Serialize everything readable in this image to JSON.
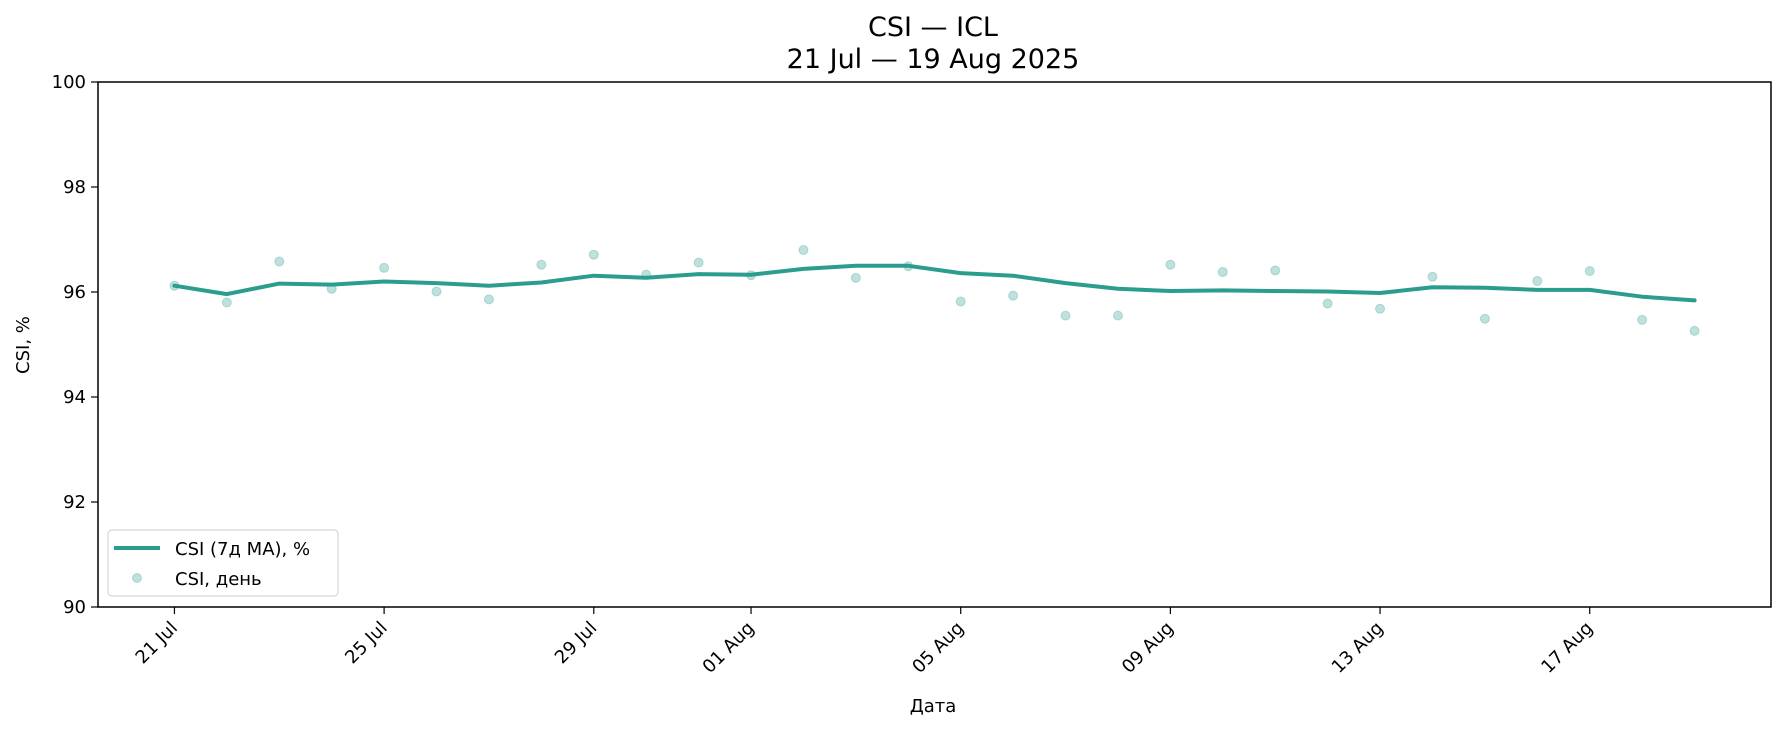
{
  "chart_data": {
    "type": "line",
    "title": "CSI — ICL",
    "subtitle": "21 Jul — 19 Aug 2025",
    "xlabel": "Дата",
    "ylabel": "CSI, %",
    "ylim": [
      90,
      100
    ],
    "yticks": [
      "90",
      "92",
      "94",
      "96",
      "98",
      "100"
    ],
    "xticks": [
      {
        "date": "2025-07-21",
        "label": "21 Jul"
      },
      {
        "date": "2025-07-25",
        "label": "25 Jul"
      },
      {
        "date": "2025-07-29",
        "label": "29 Jul"
      },
      {
        "date": "2025-08-01",
        "label": "01 Aug"
      },
      {
        "date": "2025-08-05",
        "label": "05 Aug"
      },
      {
        "date": "2025-08-09",
        "label": "09 Aug"
      },
      {
        "date": "2025-08-13",
        "label": "13 Aug"
      },
      {
        "date": "2025-08-17",
        "label": "17 Aug"
      }
    ],
    "xlim": [
      "2025-07-19T13:00",
      "2025-08-20T11:00"
    ],
    "grid": false,
    "legend_position": "lower-left",
    "x": [
      "2025-07-21",
      "2025-07-22",
      "2025-07-23",
      "2025-07-24",
      "2025-07-25",
      "2025-07-26",
      "2025-07-27",
      "2025-07-28",
      "2025-07-29",
      "2025-07-30",
      "2025-07-31",
      "2025-08-01",
      "2025-08-02",
      "2025-08-03",
      "2025-08-04",
      "2025-08-05",
      "2025-08-06",
      "2025-08-07",
      "2025-08-08",
      "2025-08-09",
      "2025-08-10",
      "2025-08-11",
      "2025-08-12",
      "2025-08-13",
      "2025-08-14",
      "2025-08-15",
      "2025-08-16",
      "2025-08-17",
      "2025-08-18",
      "2025-08-19"
    ],
    "series": [
      {
        "name": "CSI (7д MA), %",
        "kind": "line",
        "color": "#2a9d8f",
        "values": [
          96.12,
          95.96,
          96.16,
          96.14,
          96.2,
          96.17,
          96.12,
          96.18,
          96.31,
          96.27,
          96.34,
          96.33,
          96.44,
          96.5,
          96.5,
          96.36,
          96.31,
          96.17,
          96.06,
          96.02,
          96.03,
          96.02,
          96.01,
          95.98,
          96.09,
          96.08,
          96.04,
          96.04,
          95.91,
          95.84
        ]
      },
      {
        "name": "CSI, день",
        "kind": "scatter",
        "color": "#2a9d8f",
        "values": [
          96.12,
          95.8,
          96.58,
          96.06,
          96.46,
          96.01,
          95.86,
          96.52,
          96.71,
          96.33,
          96.56,
          96.32,
          96.8,
          96.27,
          96.49,
          95.82,
          95.93,
          95.55,
          95.55,
          96.52,
          96.38,
          96.41,
          95.78,
          95.68,
          96.29,
          95.49,
          96.21,
          96.4,
          95.47,
          95.26
        ]
      }
    ]
  }
}
